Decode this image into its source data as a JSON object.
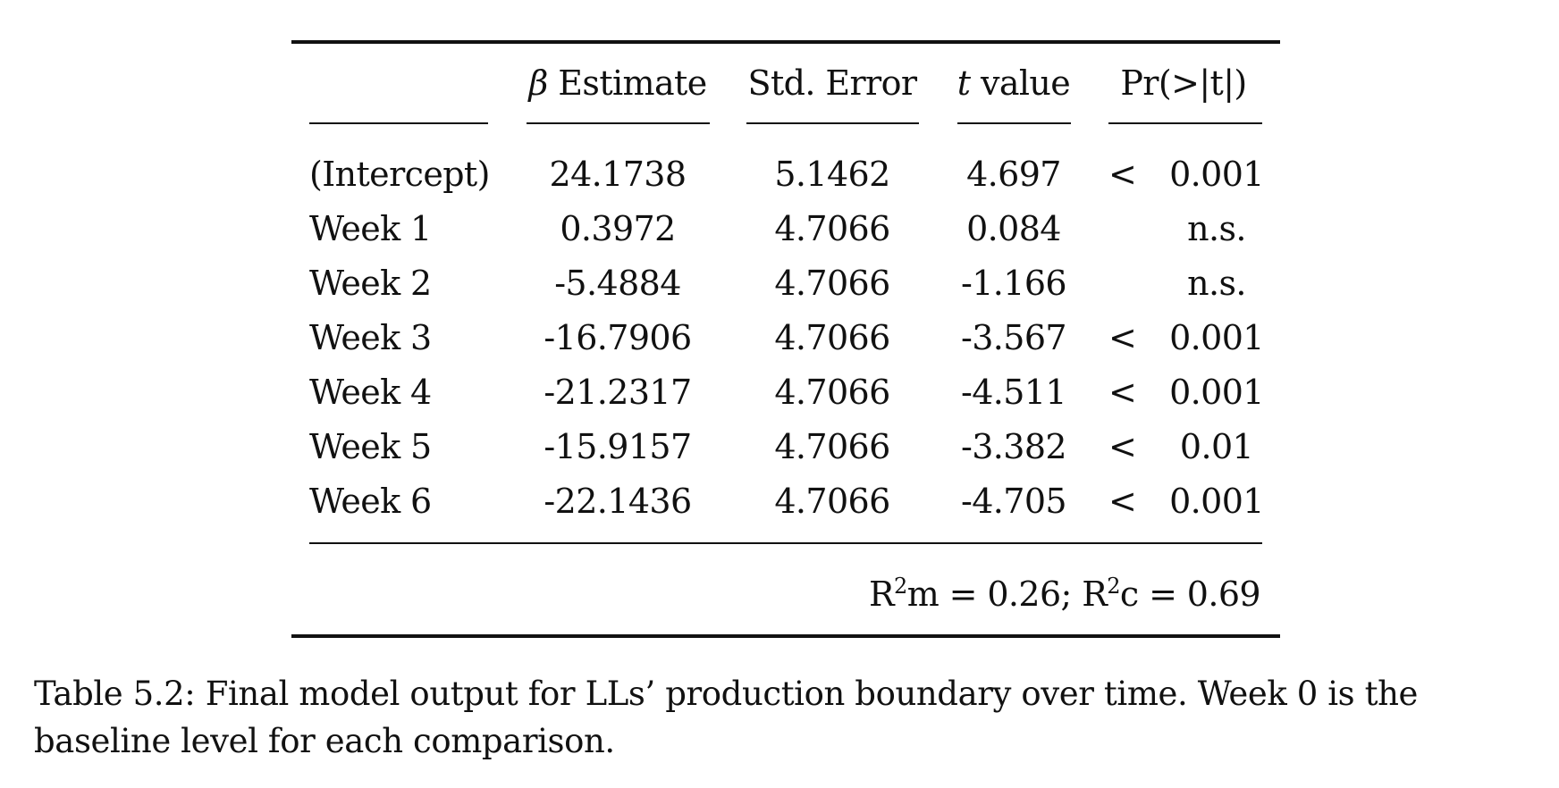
{
  "table": {
    "headers": {
      "beta_symbol": "β",
      "estimate": "Estimate",
      "std_error": "Std. Error",
      "t_symbol": "t",
      "t_value": "value",
      "pr": "Pr(>|t|)"
    },
    "rows": [
      {
        "term": "(Intercept)",
        "estimate": "24.1738",
        "std_error": "5.1462",
        "t_value": "4.697",
        "lt": "<",
        "p": "0.001"
      },
      {
        "term": "Week 1",
        "estimate": "0.3972",
        "std_error": "4.7066",
        "t_value": "0.084",
        "lt": "",
        "p": "n.s."
      },
      {
        "term": "Week 2",
        "estimate": "-5.4884",
        "std_error": "4.7066",
        "t_value": "-1.166",
        "lt": "",
        "p": "n.s."
      },
      {
        "term": "Week 3",
        "estimate": "-16.7906",
        "std_error": "4.7066",
        "t_value": "-3.567",
        "lt": "<",
        "p": "0.001"
      },
      {
        "term": "Week 4",
        "estimate": "-21.2317",
        "std_error": "4.7066",
        "t_value": "-4.511",
        "lt": "<",
        "p": "0.001"
      },
      {
        "term": "Week 5",
        "estimate": "-15.9157",
        "std_error": "4.7066",
        "t_value": "-3.382",
        "lt": "<",
        "p": "0.01"
      },
      {
        "term": "Week 6",
        "estimate": "-22.1436",
        "std_error": "4.7066",
        "t_value": "-4.705",
        "lt": "<",
        "p": "0.001"
      }
    ],
    "footer": {
      "r_m_base": "R",
      "r_m_exp": "2",
      "r_m_sub": "m = 0.26; ",
      "r_c_base": "R",
      "r_c_exp": "2",
      "r_c_sub": "c = 0.69"
    }
  },
  "caption": "Table 5.2: Final model output for LLs’ production boundary over time. Week 0 is the baseline level for each comparison."
}
